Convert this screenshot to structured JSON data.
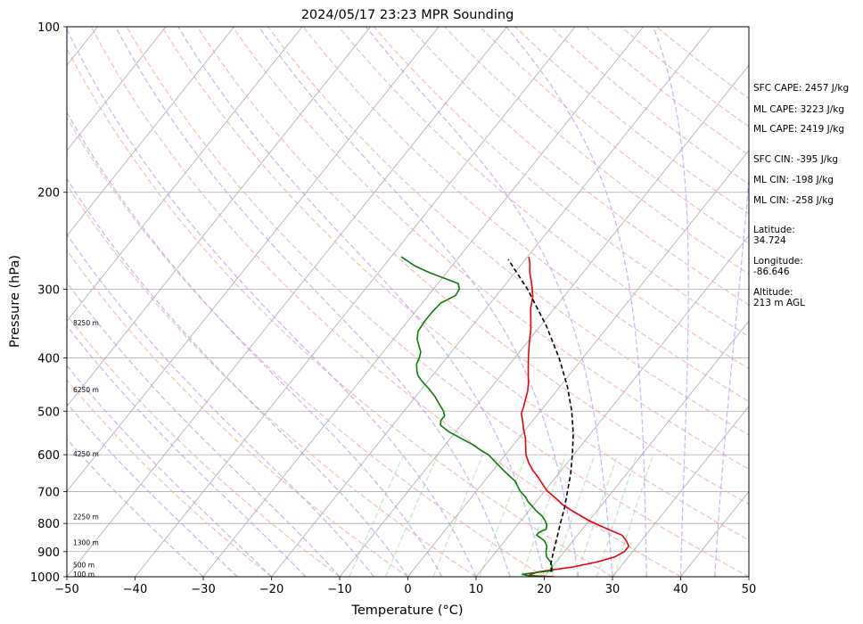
{
  "chart_data": {
    "type": "line",
    "title": "2024/05/17 23:23 MPR Sounding",
    "xlabel": "Temperature (°C)",
    "ylabel": "Pressure (hPa)",
    "xlim": [
      -50,
      50
    ],
    "ylim": [
      1000,
      100
    ],
    "y_scale": "log",
    "grid": true,
    "x_ticks": [
      "−50",
      "−40",
      "−30",
      "−20",
      "−10",
      "0",
      "10",
      "20",
      "30",
      "40",
      "50"
    ],
    "y_ticks": [
      "100",
      "200",
      "300",
      "400",
      "500",
      "600",
      "700",
      "800",
      "900",
      "1000"
    ],
    "height_labels": [
      {
        "label": "100 m",
        "p": 988
      },
      {
        "label": "500 m",
        "p": 950
      },
      {
        "label": "1300 m",
        "p": 866
      },
      {
        "label": "2250 m",
        "p": 778
      },
      {
        "label": "4250 m",
        "p": 598
      },
      {
        "label": "6250 m",
        "p": 457
      },
      {
        "label": "8250 m",
        "p": 345
      }
    ],
    "series": [
      {
        "color": "#e8000b",
        "points": [
          [
            1000,
            21.5
          ],
          [
            995,
            17.5
          ],
          [
            990,
            17.8
          ],
          [
            980,
            18.5
          ],
          [
            960,
            23
          ],
          [
            940,
            26
          ],
          [
            920,
            28
          ],
          [
            900,
            28.8
          ],
          [
            880,
            28.8
          ],
          [
            860,
            27.8
          ],
          [
            840,
            26.5
          ],
          [
            825,
            24.5
          ],
          [
            810,
            22.5
          ],
          [
            795,
            20.5
          ],
          [
            780,
            18.8
          ],
          [
            760,
            16.5
          ],
          [
            740,
            14.3
          ],
          [
            720,
            12.5
          ],
          [
            700,
            10.5
          ],
          [
            680,
            9
          ],
          [
            660,
            7.5
          ],
          [
            640,
            5.8
          ],
          [
            620,
            4.3
          ],
          [
            600,
            3
          ],
          [
            580,
            2
          ],
          [
            560,
            1
          ],
          [
            540,
            -0.3
          ],
          [
            520,
            -1.5
          ],
          [
            505,
            -2.5
          ],
          [
            490,
            -3
          ],
          [
            475,
            -3.6
          ],
          [
            460,
            -4.2
          ],
          [
            445,
            -5
          ],
          [
            430,
            -6
          ],
          [
            415,
            -7
          ],
          [
            400,
            -8
          ],
          [
            385,
            -9
          ],
          [
            370,
            -10
          ],
          [
            355,
            -11
          ],
          [
            340,
            -12.2
          ],
          [
            325,
            -13.5
          ],
          [
            310,
            -14.5
          ],
          [
            300,
            -15.5
          ],
          [
            290,
            -16.6
          ],
          [
            280,
            -17.8
          ],
          [
            270,
            -18.8
          ],
          [
            262,
            -19.8
          ]
        ]
      },
      {
        "color": "#0a7d0a",
        "points": [
          [
            1000,
            20.5
          ],
          [
            995,
            17.5
          ],
          [
            990,
            16.5
          ],
          [
            985,
            17.5
          ],
          [
            975,
            20.5
          ],
          [
            960,
            20
          ],
          [
            940,
            19.2
          ],
          [
            920,
            18
          ],
          [
            900,
            17.3
          ],
          [
            880,
            16.8
          ],
          [
            860,
            15.8
          ],
          [
            840,
            14
          ],
          [
            830,
            14
          ],
          [
            820,
            14.7
          ],
          [
            805,
            14.3
          ],
          [
            790,
            13.5
          ],
          [
            775,
            12.5
          ],
          [
            760,
            11.2
          ],
          [
            745,
            10
          ],
          [
            730,
            8.8
          ],
          [
            715,
            7.8
          ],
          [
            700,
            6.5
          ],
          [
            685,
            5.5
          ],
          [
            670,
            4.5
          ],
          [
            655,
            3
          ],
          [
            640,
            1.5
          ],
          [
            625,
            0
          ],
          [
            610,
            -1.5
          ],
          [
            600,
            -2.5
          ],
          [
            590,
            -4
          ],
          [
            575,
            -6
          ],
          [
            560,
            -8.5
          ],
          [
            545,
            -11
          ],
          [
            530,
            -13
          ],
          [
            520,
            -13.5
          ],
          [
            510,
            -13.5
          ],
          [
            500,
            -14.2
          ],
          [
            485,
            -15.7
          ],
          [
            470,
            -17.2
          ],
          [
            455,
            -19
          ],
          [
            440,
            -21
          ],
          [
            430,
            -22.2
          ],
          [
            420,
            -23
          ],
          [
            410,
            -23.7
          ],
          [
            400,
            -24
          ],
          [
            390,
            -24.5
          ],
          [
            380,
            -25.5
          ],
          [
            370,
            -26.5
          ],
          [
            358,
            -27.3
          ],
          [
            345,
            -27.5
          ],
          [
            330,
            -27.5
          ],
          [
            318,
            -27.3
          ],
          [
            308,
            -26
          ],
          [
            300,
            -26.2
          ],
          [
            293,
            -27
          ],
          [
            287,
            -29.5
          ],
          [
            280,
            -32.5
          ],
          [
            272,
            -35.5
          ],
          [
            262,
            -38.5
          ]
        ]
      },
      {
        "color": "#000000",
        "dashed": true,
        "points": [
          [
            980,
            20.5
          ],
          [
            950,
            19.5
          ],
          [
            900,
            18.4
          ],
          [
            850,
            17.3
          ],
          [
            800,
            16.1
          ],
          [
            750,
            14.9
          ],
          [
            700,
            13.4
          ],
          [
            650,
            11.8
          ],
          [
            600,
            9.8
          ],
          [
            550,
            7.5
          ],
          [
            500,
            4.6
          ],
          [
            450,
            1
          ],
          [
            400,
            -3.5
          ],
          [
            350,
            -9.1
          ],
          [
            300,
            -16.2
          ],
          [
            265,
            -22.5
          ]
        ]
      }
    ]
  },
  "sidebar": {
    "sfc_cape": "SFC CAPE: 2457 J/kg",
    "ml_cape_1": "ML CAPE: 3223 J/kg",
    "ml_cape_2": "ML CAPE: 2419 J/kg",
    "sfc_cin": "SFC CIN: -395 J/kg",
    "ml_cin_1": "ML CIN: -198 J/kg",
    "ml_cin_2": "ML CIN: -258 J/kg",
    "latitude_label": "Latitude:",
    "latitude_value": "34.724",
    "longitude_label": "Longitude:",
    "longitude_value": "-86.646",
    "altitude_label": "Altitude:",
    "altitude_value": "213 m AGL"
  },
  "colors": {
    "isotherm": "#aaaaaa",
    "dry_adiabat": "#f4a4a4",
    "moist_adiabat": "#a8a0f0",
    "mixing_ratio": "#9cd49c"
  }
}
